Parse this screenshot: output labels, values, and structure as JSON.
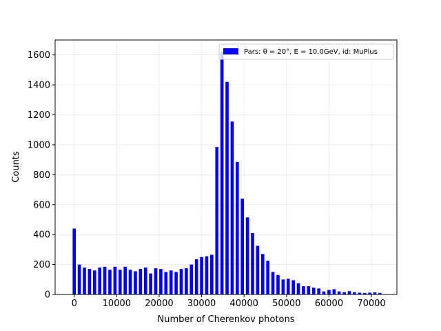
{
  "chart_data": {
    "type": "bar",
    "xlabel": "Number of Cherenkov photons",
    "ylabel": "Counts",
    "xlim": [
      -4500,
      76000
    ],
    "ylim": [
      0,
      1700
    ],
    "xticks": [
      0,
      10000,
      20000,
      30000,
      40000,
      50000,
      60000,
      70000
    ],
    "yticks": [
      0,
      200,
      400,
      600,
      800,
      1000,
      1200,
      1400,
      1600
    ],
    "grid": true,
    "legend_position": "top-right",
    "bar_width": 750,
    "bar_color": "#0000ff",
    "series": [
      {
        "name": "Pars: θ = 20°, E = 10.0GeV, id: MuPlus",
        "x": [
          0,
          1200,
          2400,
          3600,
          4800,
          6000,
          7200,
          8400,
          9600,
          10800,
          12000,
          13200,
          14400,
          15600,
          16800,
          18000,
          19200,
          20400,
          21600,
          22800,
          24000,
          25200,
          26400,
          27600,
          28800,
          30000,
          31200,
          32400,
          33600,
          34800,
          36000,
          37200,
          38400,
          39600,
          40800,
          42000,
          43200,
          44400,
          45600,
          46800,
          48000,
          49200,
          50400,
          51600,
          52800,
          54000,
          55200,
          56400,
          57600,
          58800,
          60000,
          61200,
          62400,
          63600,
          64800,
          66000,
          67200,
          68400,
          69600,
          70800,
          72000
        ],
        "values": [
          440,
          200,
          180,
          170,
          160,
          180,
          185,
          165,
          185,
          165,
          185,
          165,
          155,
          170,
          180,
          140,
          175,
          170,
          150,
          160,
          150,
          170,
          175,
          200,
          235,
          250,
          255,
          265,
          985,
          1620,
          1420,
          1155,
          885,
          640,
          515,
          410,
          325,
          270,
          225,
          150,
          130,
          100,
          105,
          95,
          75,
          55,
          55,
          45,
          40,
          20,
          30,
          35,
          20,
          15,
          22,
          15,
          12,
          10,
          12,
          14,
          10
        ]
      }
    ],
    "legend_entries": [
      "Pars: θ = 20°, E = 10.0GeV, id: MuPlus"
    ]
  }
}
